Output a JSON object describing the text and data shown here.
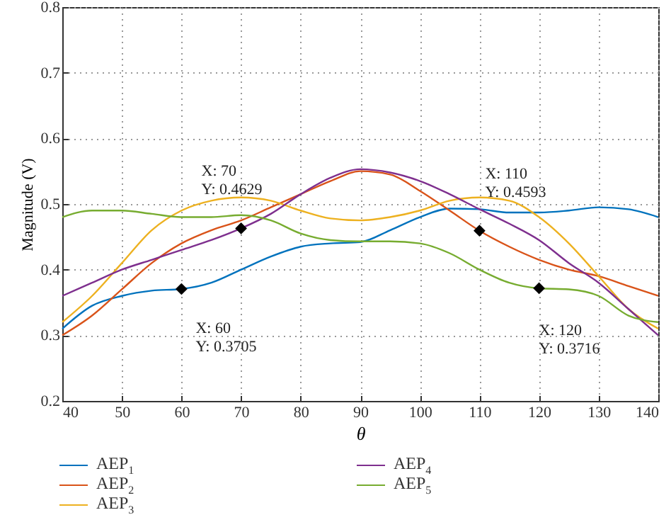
{
  "chart_data": {
    "type": "line",
    "xlabel": "θ",
    "ylabel": "Magnitude (V)",
    "x": [
      40,
      45,
      50,
      55,
      60,
      65,
      70,
      75,
      80,
      85,
      90,
      95,
      100,
      105,
      110,
      115,
      120,
      125,
      130,
      135,
      140
    ],
    "series": [
      {
        "name": "AEP$_{1}$",
        "color": "#0072bd",
        "values": [
          0.31,
          0.345,
          0.36,
          0.368,
          0.3705,
          0.38,
          0.4,
          0.42,
          0.435,
          0.44,
          0.442,
          0.46,
          0.48,
          0.493,
          0.492,
          0.487,
          0.487,
          0.49,
          0.495,
          0.492,
          0.48
        ]
      },
      {
        "name": "AEP$_{2}$",
        "color": "#d95319",
        "values": [
          0.3,
          0.33,
          0.37,
          0.41,
          0.44,
          0.46,
          0.475,
          0.495,
          0.515,
          0.535,
          0.55,
          0.545,
          0.52,
          0.49,
          0.4593,
          0.435,
          0.415,
          0.4,
          0.39,
          0.375,
          0.36
        ]
      },
      {
        "name": "AEP$_{3}$",
        "color": "#edb120",
        "values": [
          0.32,
          0.36,
          0.41,
          0.46,
          0.49,
          0.505,
          0.51,
          0.505,
          0.49,
          0.478,
          0.475,
          0.48,
          0.49,
          0.505,
          0.51,
          0.505,
          0.48,
          0.44,
          0.39,
          0.34,
          0.31
        ]
      },
      {
        "name": "AEP$_{4}$",
        "color": "#7e2f8e",
        "values": [
          0.36,
          0.38,
          0.4,
          0.415,
          0.43,
          0.445,
          0.4629,
          0.485,
          0.515,
          0.54,
          0.553,
          0.548,
          0.535,
          0.515,
          0.492,
          0.47,
          0.445,
          0.41,
          0.38,
          0.34,
          0.3
        ]
      },
      {
        "name": "AEP$_{5}$",
        "color": "#77ac30",
        "values": [
          0.48,
          0.49,
          0.49,
          0.485,
          0.48,
          0.48,
          0.483,
          0.475,
          0.455,
          0.445,
          0.443,
          0.443,
          0.44,
          0.425,
          0.4,
          0.38,
          0.3716,
          0.37,
          0.36,
          0.33,
          0.32
        ]
      }
    ],
    "annotations": [
      {
        "text": "X: 60\nY: 0.3705",
        "x": 60,
        "y": 0.3705
      },
      {
        "text": "X: 70\nY: 0.4629",
        "x": 70,
        "y": 0.4629
      },
      {
        "text": "X: 110\nY: 0.4593",
        "x": 110,
        "y": 0.4593
      },
      {
        "text": "X: 120\nY: 0.3716",
        "x": 120,
        "y": 0.3716
      }
    ],
    "xlim": [
      40,
      140
    ],
    "xticks": [
      40,
      50,
      60,
      70,
      80,
      90,
      100,
      110,
      120,
      130,
      140
    ],
    "ylim": [
      0.2,
      0.8
    ],
    "yticks": [
      0.2,
      0.3,
      0.4,
      0.5,
      0.6,
      0.7,
      0.8
    ],
    "grid": true,
    "legend": "bottom"
  }
}
